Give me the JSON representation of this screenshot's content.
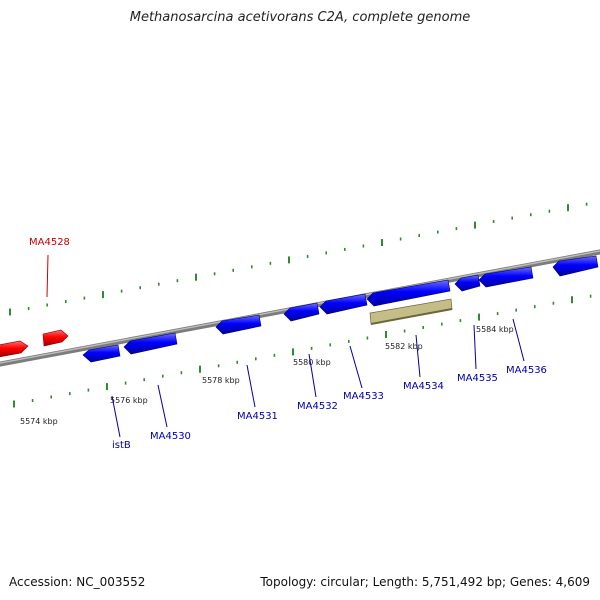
{
  "title": "Methanosarcina acetivorans C2A, complete genome",
  "footer": {
    "accession": "Accession: NC_003552",
    "summary": "Topology: circular; Length: 5,751,492 bp; Genes: 4,609"
  },
  "colors": {
    "backbone": "#8a8a8a",
    "forward_gene": "#ff0000",
    "reverse_gene": "#0000ff",
    "feature": "#b8b27a",
    "ticks": "#2e8b2e",
    "forward_label": "#cc0000",
    "reverse_label": "#0000aa"
  },
  "scale_labels": [
    "5574 kbp",
    "5576 kbp",
    "5578 kbp",
    "5580 kbp",
    "5582 kbp",
    "5584 kbp"
  ],
  "genes": [
    {
      "name": "MA4528",
      "strand": "forward"
    },
    {
      "name": "istB",
      "strand": "reverse"
    },
    {
      "name": "MA4530",
      "strand": "reverse"
    },
    {
      "name": "MA4531",
      "strand": "reverse"
    },
    {
      "name": "MA4532",
      "strand": "reverse"
    },
    {
      "name": "MA4533",
      "strand": "reverse"
    },
    {
      "name": "MA4534",
      "strand": "reverse"
    },
    {
      "name": "MA4535",
      "strand": "reverse"
    },
    {
      "name": "MA4536",
      "strand": "reverse"
    }
  ]
}
